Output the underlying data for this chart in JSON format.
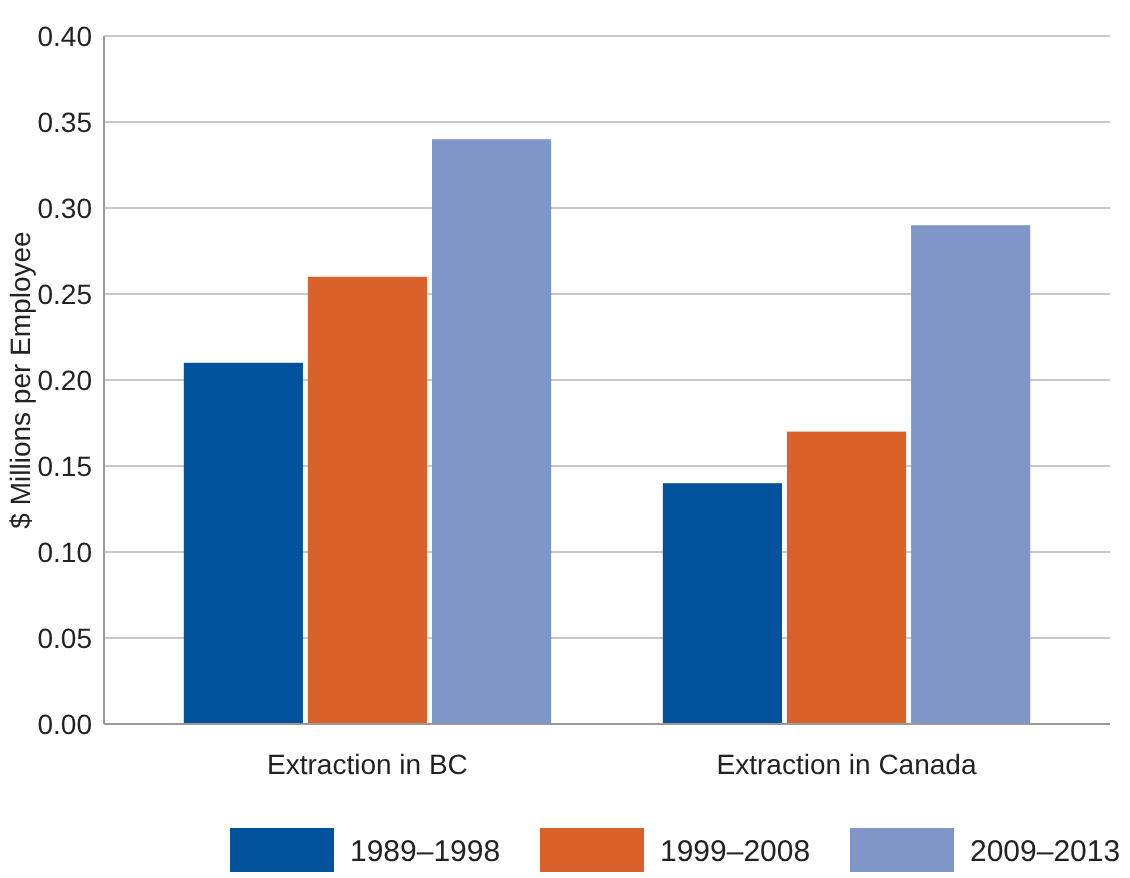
{
  "chart_data": {
    "type": "bar",
    "ylabel": "$ Millions per Employee",
    "categories": [
      "Extraction in BC",
      "Extraction in Canada"
    ],
    "series": [
      {
        "name": "1989–1998",
        "color": "#00529b",
        "values": [
          0.21,
          0.14
        ]
      },
      {
        "name": "1999–2008",
        "color": "#d9612a",
        "values": [
          0.26,
          0.17
        ]
      },
      {
        "name": "2009–2013",
        "color": "#8095c8",
        "values": [
          0.34,
          0.29
        ]
      }
    ],
    "ylim": [
      0,
      0.4
    ],
    "yticks": [
      {
        "value": 0,
        "label": "0.00"
      },
      {
        "value": 0.05,
        "label": "0.05"
      },
      {
        "value": 0.1,
        "label": "0.10"
      },
      {
        "value": 0.15,
        "label": "0.15"
      },
      {
        "value": 0.2,
        "label": "0.20"
      },
      {
        "value": 0.25,
        "label": "0.25"
      },
      {
        "value": 0.3,
        "label": "0.30"
      },
      {
        "value": 0.35,
        "label": "0.35"
      },
      {
        "value": 0.4,
        "label": "0.40"
      }
    ],
    "grid": "y",
    "legend": "bottom"
  }
}
